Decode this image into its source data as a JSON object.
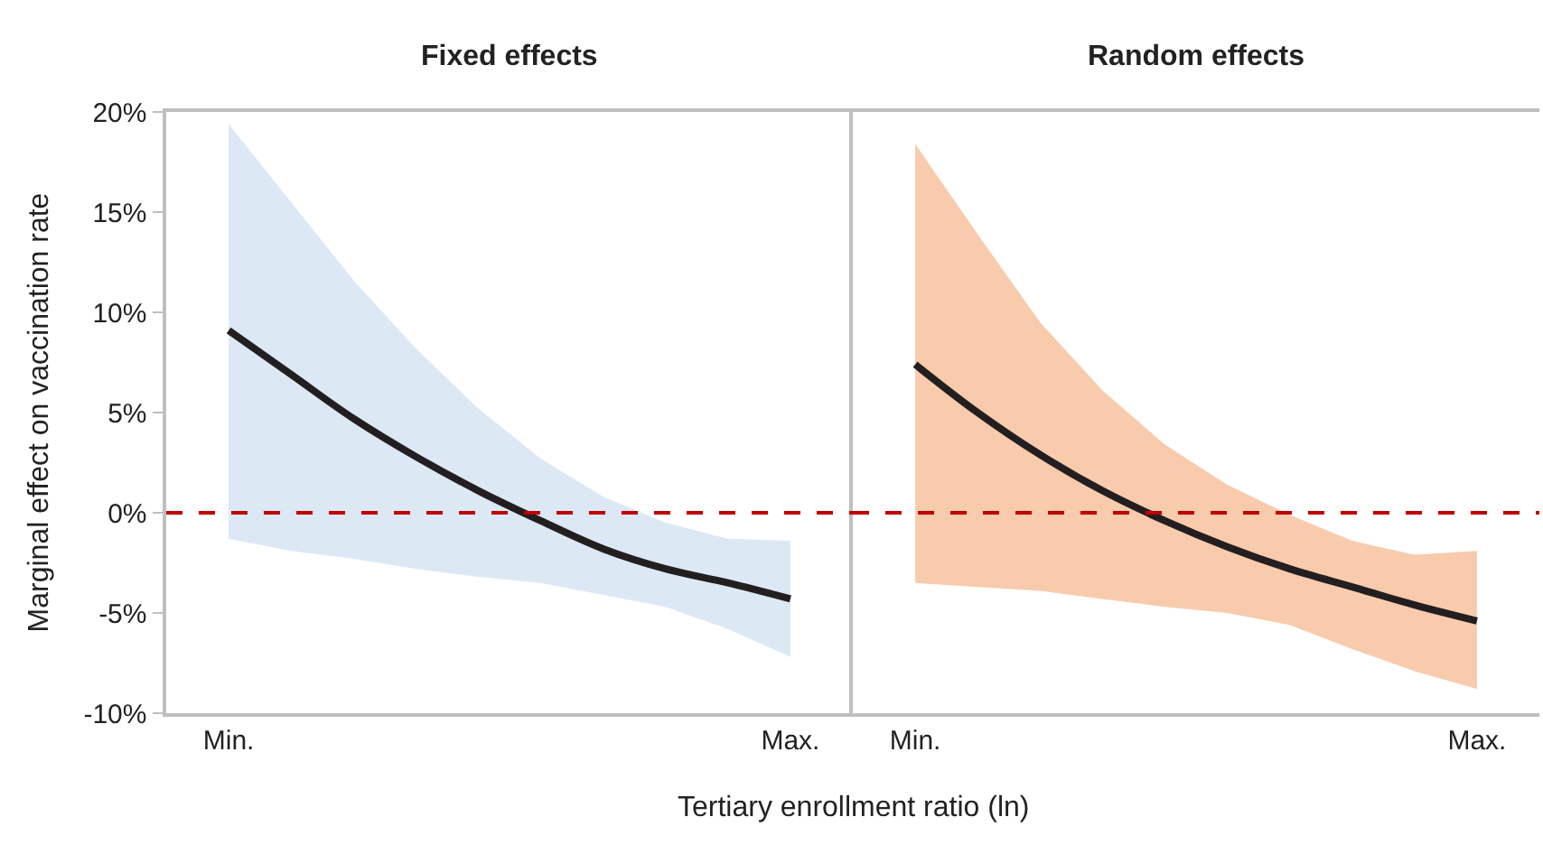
{
  "chart_data": [
    {
      "type": "line",
      "title": "Fixed effects",
      "ylabel": "Marginal effect on vaccination rate",
      "xlabel": "Tertiary enrollment ratio (ln)",
      "categories": [
        "Min.",
        null,
        null,
        null,
        null,
        null,
        null,
        null,
        null,
        "Max."
      ],
      "ylim": [
        -10,
        20
      ],
      "yticks": [
        {
          "value": -10,
          "label": "-10%"
        },
        {
          "value": -5,
          "label": "-5%"
        },
        {
          "value": 0,
          "label": "0%"
        },
        {
          "value": 5,
          "label": "5%"
        },
        {
          "value": 10,
          "label": "10%"
        },
        {
          "value": 15,
          "label": "15%"
        },
        {
          "value": 20,
          "label": "20%"
        }
      ],
      "series": [
        {
          "color": "#231f20",
          "values": [
            9.1,
            6.9,
            4.7,
            2.8,
            1.1,
            -0.4,
            -1.8,
            -2.8,
            -3.5,
            -4.3
          ],
          "lower": [
            -1.3,
            -1.9,
            -2.3,
            -2.8,
            -3.2,
            -3.5,
            -4.1,
            -4.7,
            -5.8,
            -7.2
          ],
          "upper": [
            19.4,
            15.5,
            11.6,
            8.2,
            5.2,
            2.7,
            0.8,
            -0.5,
            -1.3,
            -1.4
          ]
        }
      ],
      "ref_lines": [
        {
          "axis": "y",
          "value": 0,
          "color": "#c00000",
          "line_style": "dashed"
        }
      ],
      "grid": false
    },
    {
      "type": "line",
      "title": "Random effects",
      "categories": [
        "Min.",
        null,
        null,
        null,
        null,
        null,
        null,
        null,
        null,
        "Max."
      ],
      "ylim": [
        -10,
        20
      ],
      "tick_labels": "x",
      "series": [
        {
          "color": "#231f20",
          "values": [
            7.4,
            5.0,
            2.9,
            1.1,
            -0.4,
            -1.7,
            -2.8,
            -3.7,
            -4.6,
            -5.4
          ],
          "lower": [
            -3.5,
            -3.7,
            -3.9,
            -4.3,
            -4.7,
            -5.0,
            -5.6,
            -6.8,
            -7.9,
            -8.8
          ],
          "upper": [
            18.4,
            13.9,
            9.5,
            6.1,
            3.4,
            1.4,
            -0.1,
            -1.4,
            -2.1,
            -1.9
          ]
        }
      ],
      "ref_lines": [
        {
          "axis": "y",
          "value": 0,
          "color": "#c00000",
          "line_style": "dashed"
        }
      ],
      "grid": false
    }
  ]
}
